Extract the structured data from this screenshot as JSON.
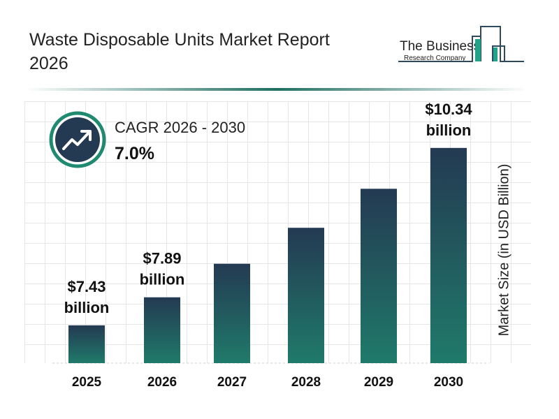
{
  "header": {
    "title": "Waste Disposable Units Market Report 2026"
  },
  "logo": {
    "line1": "The Business",
    "line2": "Research Company"
  },
  "cagr": {
    "label": "CAGR 2026 - 2030",
    "value": "7.0%",
    "icon": "trending-up-icon"
  },
  "colors": {
    "bar_top": "#243a52",
    "bar_bottom": "#1f7a6a",
    "accent": "#1f8a70"
  },
  "chart_data": {
    "type": "bar",
    "categories": [
      "2025",
      "2026",
      "2027",
      "2028",
      "2029",
      "2030"
    ],
    "values": [
      7.43,
      7.89,
      8.44,
      9.03,
      9.67,
      10.34
    ],
    "data_labels": [
      "$7.43 billion",
      "$7.89 billion",
      "",
      "",
      "",
      "$10.34 billion"
    ],
    "data_label_lines": [
      [
        "$7.43",
        "billion"
      ],
      [
        "$7.89",
        "billion"
      ],
      null,
      null,
      null,
      [
        "$10.34",
        "billion"
      ]
    ],
    "ylabel": "Market Size (in USD Billion)",
    "xlabel": "",
    "grid": true
  }
}
